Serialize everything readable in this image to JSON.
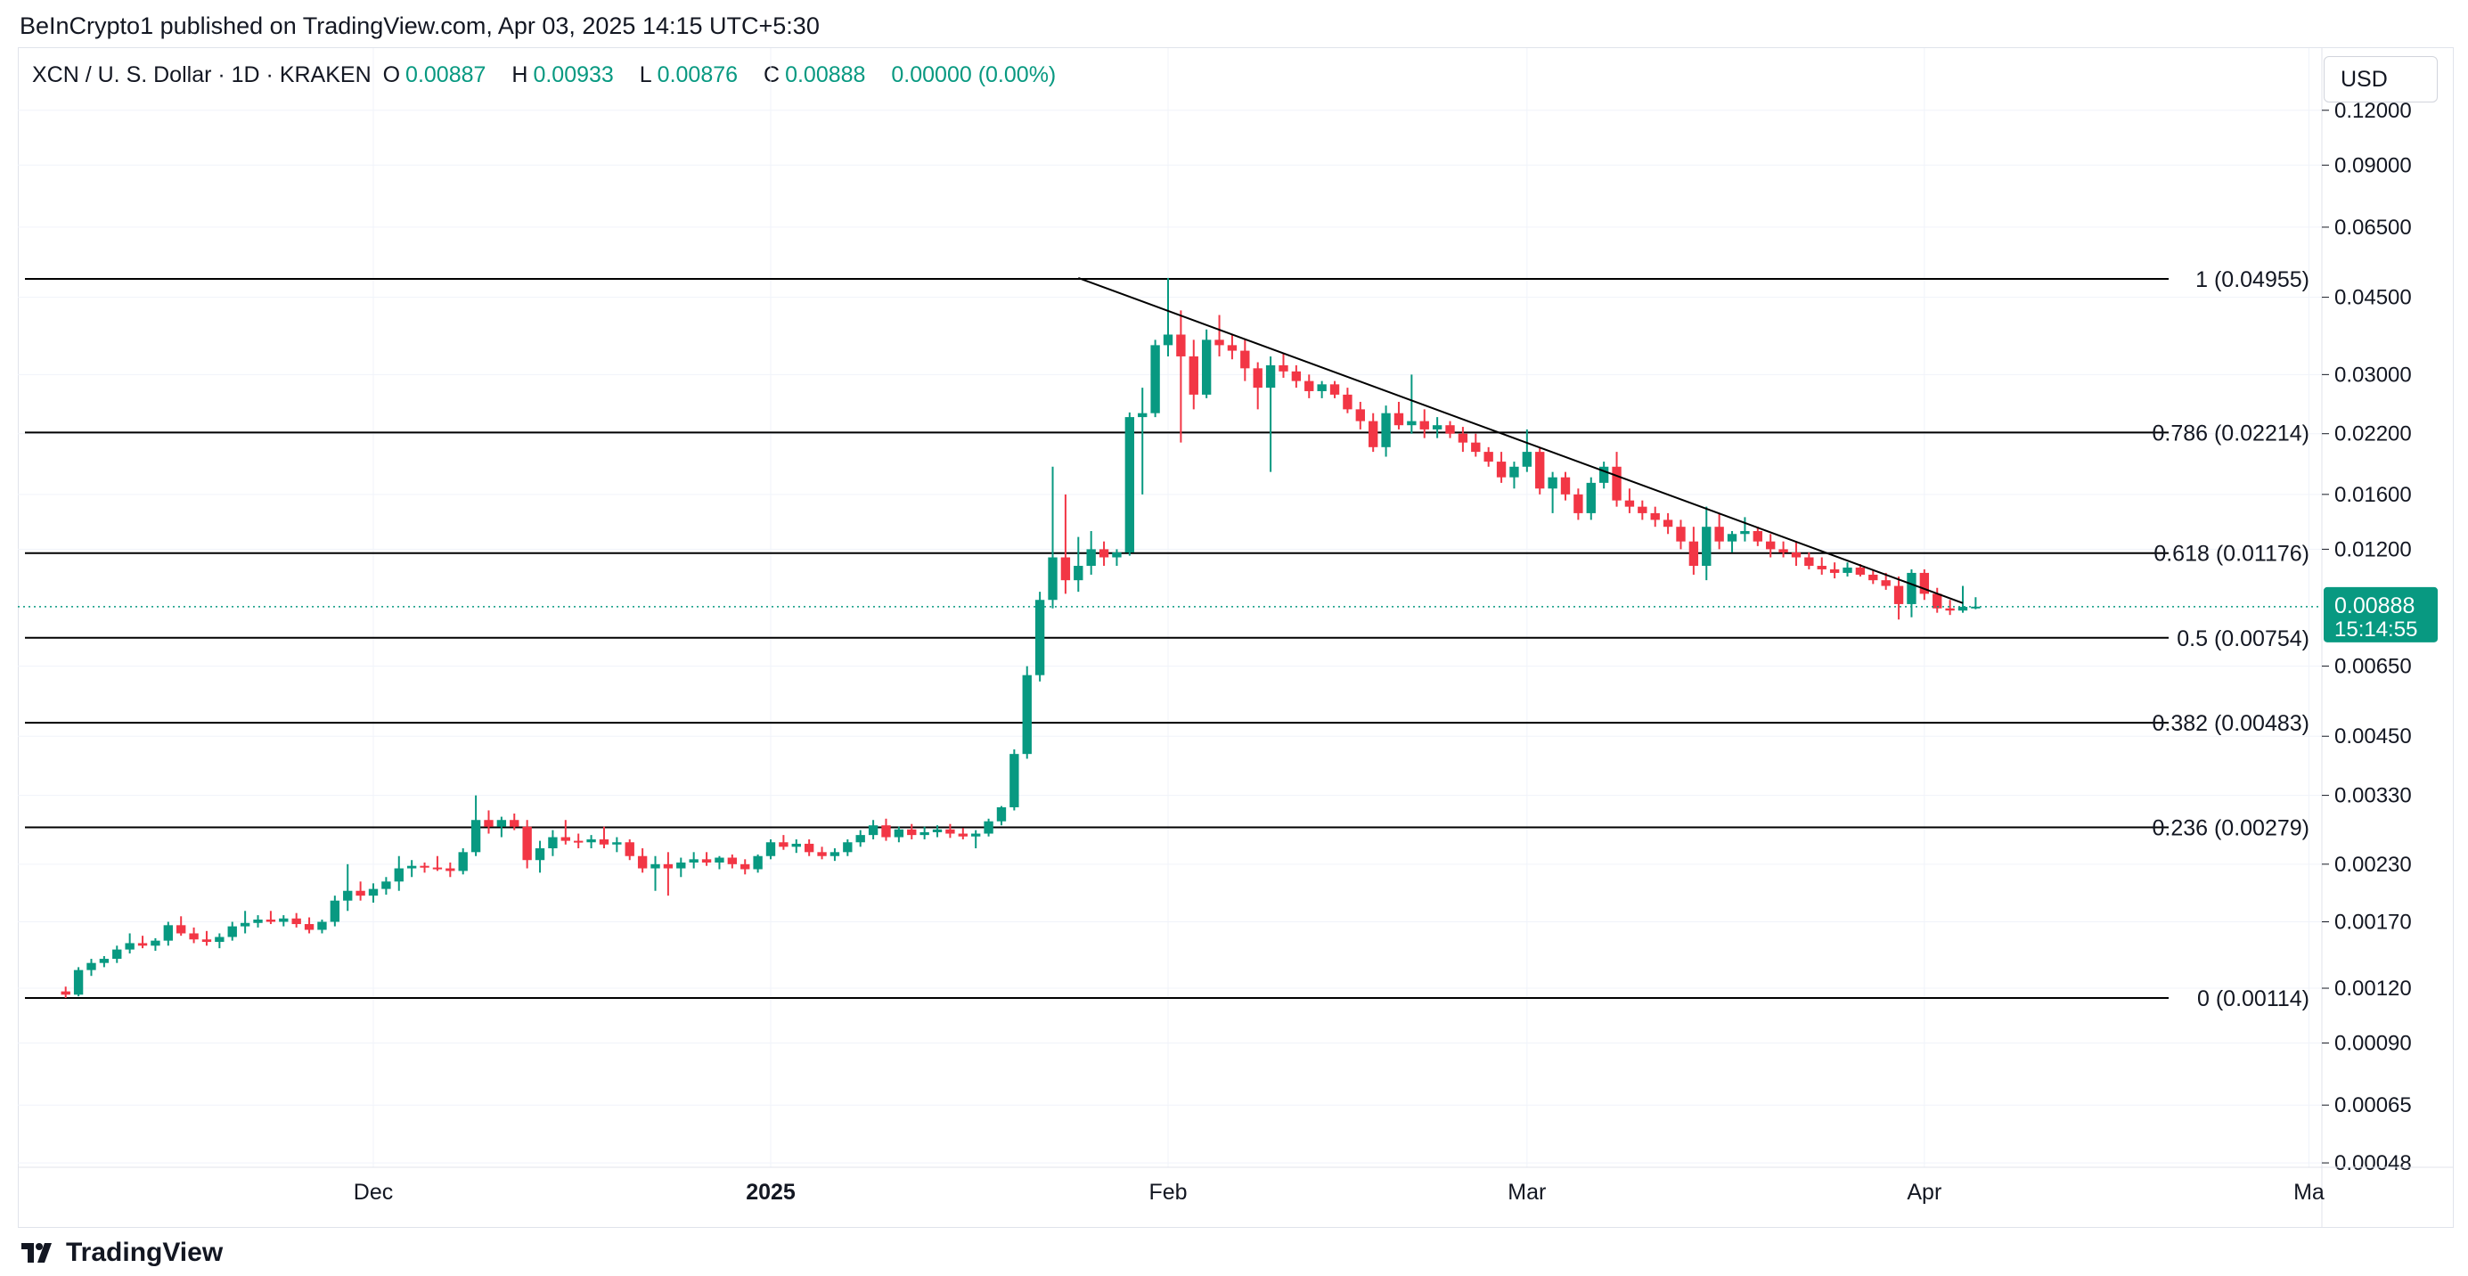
{
  "header": {
    "publisher_line": "BeInCrypto1 published on TradingView.com, Apr 03, 2025 14:15 UTC+5:30"
  },
  "legend": {
    "symbol": "XCN / U. S. Dollar · 1D · KRAKEN",
    "o_label": "O",
    "o_value": "0.00887",
    "h_label": "H",
    "h_value": "0.00933",
    "l_label": "L",
    "l_value": "0.00876",
    "c_label": "C",
    "c_value": "0.00888",
    "change": "0.00000 (0.00%)"
  },
  "currency_button": "USD",
  "footer": {
    "brand": "TradingView"
  },
  "colors": {
    "up": "#089981",
    "down": "#f23645",
    "line": "#000000",
    "grid": "#f0f3fa",
    "price_tag": "#089981"
  },
  "chart_data": {
    "type": "candlestick",
    "scale": "log",
    "y_axis_ticks": [
      "0.12000",
      "0.09000",
      "0.06500",
      "0.04500",
      "0.03000",
      "0.02200",
      "0.01600",
      "0.01200",
      "0.00650",
      "0.00450",
      "0.00330",
      "0.00230",
      "0.00170",
      "0.00120",
      "0.00090",
      "0.00065",
      "0.00048"
    ],
    "x_axis_ticks": [
      {
        "label": "Dec",
        "bold": false
      },
      {
        "label": "2025",
        "bold": true
      },
      {
        "label": "Feb",
        "bold": false
      },
      {
        "label": "Mar",
        "bold": false
      },
      {
        "label": "Apr",
        "bold": false
      },
      {
        "label": "Ma",
        "bold": false
      }
    ],
    "fib_levels": [
      {
        "label": "1 (0.04955)",
        "value": 0.04955
      },
      {
        "label": "0.786 (0.02214)",
        "value": 0.02214
      },
      {
        "label": "0.618 (0.01176)",
        "value": 0.01176
      },
      {
        "label": "0.5 (0.00754)",
        "value": 0.00754
      },
      {
        "label": "0.382 (0.00483)",
        "value": 0.00483
      },
      {
        "label": "0.236 (0.00279)",
        "value": 0.00279
      },
      {
        "label": "0 (0.00114)",
        "value": 0.00114
      }
    ],
    "current_price": "0.00888",
    "countdown": "15:14:55",
    "trendline": {
      "from": {
        "date": "2025-01-25",
        "value": 0.0498
      },
      "to": {
        "date": "2025-04-04",
        "value": 0.00905
      }
    },
    "candles": [
      [
        0.00118,
        0.00121,
        0.00114,
        0.00116
      ],
      [
        0.00116,
        0.00134,
        0.00115,
        0.00132
      ],
      [
        0.00132,
        0.0014,
        0.00128,
        0.00137
      ],
      [
        0.00137,
        0.00142,
        0.00134,
        0.0014
      ],
      [
        0.0014,
        0.0015,
        0.00137,
        0.00147
      ],
      [
        0.00147,
        0.0016,
        0.00144,
        0.00152
      ],
      [
        0.00152,
        0.00158,
        0.00148,
        0.0015
      ],
      [
        0.0015,
        0.00156,
        0.00146,
        0.00154
      ],
      [
        0.00154,
        0.0017,
        0.0015,
        0.00167
      ],
      [
        0.00167,
        0.00175,
        0.00158,
        0.0016
      ],
      [
        0.0016,
        0.00165,
        0.00152,
        0.00155
      ],
      [
        0.00155,
        0.00162,
        0.0015,
        0.00153
      ],
      [
        0.00153,
        0.0016,
        0.00148,
        0.00157
      ],
      [
        0.00157,
        0.0017,
        0.00154,
        0.00166
      ],
      [
        0.00166,
        0.0018,
        0.0016,
        0.00169
      ],
      [
        0.00169,
        0.00176,
        0.00165,
        0.00172
      ],
      [
        0.00172,
        0.0018,
        0.00168,
        0.0017
      ],
      [
        0.0017,
        0.00176,
        0.00166,
        0.00173
      ],
      [
        0.00173,
        0.00178,
        0.00165,
        0.00168
      ],
      [
        0.00168,
        0.00174,
        0.0016,
        0.00163
      ],
      [
        0.00163,
        0.00172,
        0.0016,
        0.0017
      ],
      [
        0.0017,
        0.00195,
        0.00166,
        0.0019
      ],
      [
        0.0019,
        0.0023,
        0.0018,
        0.002
      ],
      [
        0.002,
        0.0021,
        0.0019,
        0.00195
      ],
      [
        0.00195,
        0.00208,
        0.00188,
        0.00202
      ],
      [
        0.00202,
        0.00215,
        0.00196,
        0.0021
      ],
      [
        0.0021,
        0.0024,
        0.002,
        0.00225
      ],
      [
        0.00225,
        0.00235,
        0.00215,
        0.00228
      ],
      [
        0.00228,
        0.00232,
        0.0022,
        0.00226
      ],
      [
        0.00226,
        0.0024,
        0.00222,
        0.00225
      ],
      [
        0.00225,
        0.00232,
        0.00215,
        0.00222
      ],
      [
        0.00222,
        0.0025,
        0.00218,
        0.00245
      ],
      [
        0.00245,
        0.0033,
        0.0024,
        0.0029
      ],
      [
        0.0029,
        0.00305,
        0.0027,
        0.0028
      ],
      [
        0.0028,
        0.00295,
        0.00265,
        0.0029
      ],
      [
        0.0029,
        0.003,
        0.00275,
        0.0028
      ],
      [
        0.0028,
        0.0029,
        0.00225,
        0.00235
      ],
      [
        0.00235,
        0.0026,
        0.0022,
        0.0025
      ],
      [
        0.0025,
        0.00275,
        0.0024,
        0.00265
      ],
      [
        0.00265,
        0.0029,
        0.00255,
        0.0026
      ],
      [
        0.0026,
        0.0027,
        0.0025,
        0.00258
      ],
      [
        0.00258,
        0.00268,
        0.0025,
        0.00262
      ],
      [
        0.00262,
        0.0028,
        0.0025,
        0.00255
      ],
      [
        0.00255,
        0.00265,
        0.00245,
        0.00258
      ],
      [
        0.00258,
        0.00262,
        0.00235,
        0.0024
      ],
      [
        0.0024,
        0.0025,
        0.0022,
        0.00225
      ],
      [
        0.00225,
        0.0024,
        0.002,
        0.0023
      ],
      [
        0.0023,
        0.00245,
        0.00195,
        0.00225
      ],
      [
        0.00225,
        0.00238,
        0.00215,
        0.00232
      ],
      [
        0.00232,
        0.00245,
        0.00225,
        0.00236
      ],
      [
        0.00236,
        0.00245,
        0.00228,
        0.00232
      ],
      [
        0.00232,
        0.0024,
        0.00224,
        0.00238
      ],
      [
        0.00238,
        0.00242,
        0.00225,
        0.0023
      ],
      [
        0.0023,
        0.00236,
        0.00218,
        0.00224
      ],
      [
        0.00224,
        0.00242,
        0.0022,
        0.0024
      ],
      [
        0.0024,
        0.00262,
        0.00236,
        0.00258
      ],
      [
        0.00258,
        0.00268,
        0.00248,
        0.00252
      ],
      [
        0.00252,
        0.00262,
        0.00244,
        0.00256
      ],
      [
        0.00256,
        0.00262,
        0.0024,
        0.00245
      ],
      [
        0.00245,
        0.00252,
        0.00236,
        0.0024
      ],
      [
        0.0024,
        0.0025,
        0.00234,
        0.00245
      ],
      [
        0.00245,
        0.00262,
        0.0024,
        0.00258
      ],
      [
        0.00258,
        0.00275,
        0.00252,
        0.00268
      ],
      [
        0.00268,
        0.0029,
        0.00262,
        0.00282
      ],
      [
        0.00282,
        0.00292,
        0.0026,
        0.00265
      ],
      [
        0.00265,
        0.0028,
        0.00258,
        0.00276
      ],
      [
        0.00276,
        0.00284,
        0.00262,
        0.00268
      ],
      [
        0.00268,
        0.0028,
        0.00262,
        0.00272
      ],
      [
        0.00272,
        0.00282,
        0.00265,
        0.00276
      ],
      [
        0.00276,
        0.00284,
        0.00264,
        0.0027
      ],
      [
        0.0027,
        0.00278,
        0.00262,
        0.00266
      ],
      [
        0.00266,
        0.00275,
        0.0025,
        0.0027
      ],
      [
        0.0027,
        0.00292,
        0.00266,
        0.00288
      ],
      [
        0.00288,
        0.00312,
        0.00282,
        0.0031
      ],
      [
        0.0031,
        0.0042,
        0.00305,
        0.0041
      ],
      [
        0.0041,
        0.0065,
        0.004,
        0.0062
      ],
      [
        0.0062,
        0.0096,
        0.006,
        0.0092
      ],
      [
        0.0092,
        0.0185,
        0.0088,
        0.0115
      ],
      [
        0.0115,
        0.016,
        0.0095,
        0.0102
      ],
      [
        0.0102,
        0.0128,
        0.0096,
        0.011
      ],
      [
        0.011,
        0.0132,
        0.0105,
        0.012
      ],
      [
        0.012,
        0.0125,
        0.011,
        0.0115
      ],
      [
        0.0115,
        0.012,
        0.011,
        0.0118
      ],
      [
        0.0118,
        0.0246,
        0.0116,
        0.024
      ],
      [
        0.024,
        0.028,
        0.016,
        0.0245
      ],
      [
        0.0245,
        0.036,
        0.024,
        0.035
      ],
      [
        0.035,
        0.0498,
        0.033,
        0.037
      ],
      [
        0.037,
        0.042,
        0.021,
        0.033
      ],
      [
        0.033,
        0.036,
        0.025,
        0.027
      ],
      [
        0.027,
        0.038,
        0.0265,
        0.036
      ],
      [
        0.036,
        0.041,
        0.033,
        0.035
      ],
      [
        0.035,
        0.037,
        0.0325,
        0.034
      ],
      [
        0.034,
        0.036,
        0.029,
        0.031
      ],
      [
        0.031,
        0.032,
        0.025,
        0.028
      ],
      [
        0.028,
        0.033,
        0.018,
        0.0315
      ],
      [
        0.0315,
        0.0335,
        0.0295,
        0.0305
      ],
      [
        0.0305,
        0.0315,
        0.028,
        0.029
      ],
      [
        0.029,
        0.03,
        0.0265,
        0.0275
      ],
      [
        0.0275,
        0.029,
        0.0265,
        0.0285
      ],
      [
        0.0285,
        0.029,
        0.0265,
        0.027
      ],
      [
        0.027,
        0.028,
        0.0245,
        0.025
      ],
      [
        0.025,
        0.026,
        0.0225,
        0.0235
      ],
      [
        0.0235,
        0.0245,
        0.02,
        0.0205
      ],
      [
        0.0205,
        0.0255,
        0.0195,
        0.0245
      ],
      [
        0.0245,
        0.026,
        0.0225,
        0.023
      ],
      [
        0.023,
        0.03,
        0.022,
        0.0235
      ],
      [
        0.0235,
        0.025,
        0.0215,
        0.0225
      ],
      [
        0.0225,
        0.024,
        0.0215,
        0.023
      ],
      [
        0.023,
        0.0235,
        0.0215,
        0.022
      ],
      [
        0.022,
        0.0228,
        0.02,
        0.021
      ],
      [
        0.021,
        0.022,
        0.0195,
        0.02
      ],
      [
        0.02,
        0.0205,
        0.0185,
        0.019
      ],
      [
        0.019,
        0.02,
        0.017,
        0.0175
      ],
      [
        0.0175,
        0.019,
        0.0165,
        0.0185
      ],
      [
        0.0185,
        0.0225,
        0.018,
        0.02
      ],
      [
        0.02,
        0.0205,
        0.016,
        0.0165
      ],
      [
        0.0165,
        0.018,
        0.0145,
        0.0175
      ],
      [
        0.0175,
        0.018,
        0.0155,
        0.016
      ],
      [
        0.016,
        0.0165,
        0.014,
        0.0145
      ],
      [
        0.0145,
        0.0175,
        0.014,
        0.017
      ],
      [
        0.017,
        0.019,
        0.0165,
        0.0185
      ],
      [
        0.0185,
        0.02,
        0.015,
        0.0155
      ],
      [
        0.0155,
        0.0165,
        0.0145,
        0.015
      ],
      [
        0.015,
        0.0155,
        0.014,
        0.0145
      ],
      [
        0.0145,
        0.015,
        0.0135,
        0.014
      ],
      [
        0.014,
        0.0145,
        0.013,
        0.0135
      ],
      [
        0.0135,
        0.014,
        0.012,
        0.0125
      ],
      [
        0.0125,
        0.0135,
        0.0105,
        0.011
      ],
      [
        0.011,
        0.015,
        0.0102,
        0.0135
      ],
      [
        0.0135,
        0.0145,
        0.012,
        0.0125
      ],
      [
        0.0125,
        0.0132,
        0.0118,
        0.013
      ],
      [
        0.013,
        0.0142,
        0.0125,
        0.0132
      ],
      [
        0.0132,
        0.0135,
        0.0122,
        0.0125
      ],
      [
        0.0125,
        0.013,
        0.0115,
        0.012
      ],
      [
        0.012,
        0.0125,
        0.0115,
        0.0118
      ],
      [
        0.0118,
        0.0125,
        0.011,
        0.0115
      ],
      [
        0.0115,
        0.0118,
        0.0108,
        0.011
      ],
      [
        0.011,
        0.0115,
        0.0105,
        0.0108
      ],
      [
        0.0108,
        0.0112,
        0.0103,
        0.0106
      ],
      [
        0.0106,
        0.0112,
        0.0104,
        0.0109
      ],
      [
        0.0109,
        0.0111,
        0.0104,
        0.0105
      ],
      [
        0.0105,
        0.0108,
        0.01,
        0.0102
      ],
      [
        0.0102,
        0.0106,
        0.0097,
        0.0099
      ],
      [
        0.0099,
        0.0104,
        0.0083,
        0.009
      ],
      [
        0.009,
        0.0108,
        0.0084,
        0.0106
      ],
      [
        0.0106,
        0.0108,
        0.0092,
        0.0095
      ],
      [
        0.0095,
        0.0098,
        0.0086,
        0.0088
      ],
      [
        0.0088,
        0.0092,
        0.0085,
        0.0087
      ],
      [
        0.0087,
        0.0099,
        0.0086,
        0.00887
      ],
      [
        0.00887,
        0.00933,
        0.00876,
        0.00888
      ]
    ]
  }
}
